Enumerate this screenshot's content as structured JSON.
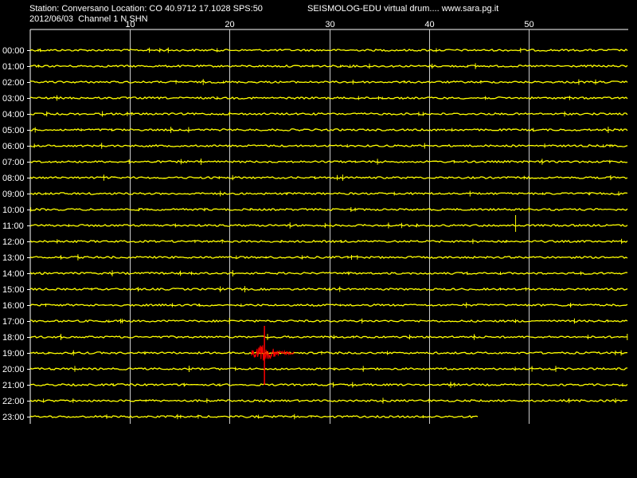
{
  "header": {
    "station": "Station: Conversano Location: CO 40.9712 17.1028 SPS:50",
    "date_channel": "2012/06/03  Channel 1 N SHN",
    "app_credit": "SEISMOLOG-EDU virtual drum.... www.sara.pg.it"
  },
  "axis": {
    "minute_ticks": [
      "10",
      "20",
      "30",
      "40",
      "50"
    ],
    "minute_values": [
      10,
      20,
      30,
      40,
      50
    ],
    "max_minute": 60
  },
  "hour_labels": [
    "00:00",
    "01:00",
    "02:00",
    "03:00",
    "04:00",
    "05:00",
    "06:00",
    "07:00",
    "08:00",
    "09:00",
    "10:00",
    "11:00",
    "12:00",
    "13:00",
    "14:00",
    "15:00",
    "16:00",
    "17:00",
    "18:00",
    "19:00",
    "20:00",
    "21:00",
    "22:00",
    "23:00"
  ],
  "last_trace_end_minute": 45,
  "event": {
    "hour_index": 19,
    "start_minute": 22.2,
    "end_minute": 26.5,
    "peak_minute": 23.5
  },
  "spikes": [
    {
      "hour_index": 11,
      "minute": 48.7
    }
  ],
  "colors": {
    "background": "#000000",
    "trace": "#ffff00",
    "event": "#ff0000",
    "grid": "#ffffff",
    "text": "#ffffff"
  }
}
